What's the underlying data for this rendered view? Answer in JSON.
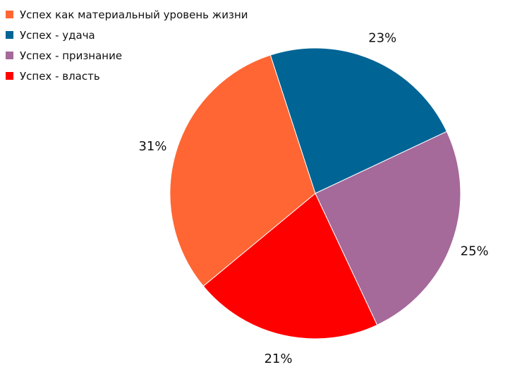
{
  "chart_data": {
    "type": "pie",
    "title": "",
    "legend_position": "top-left",
    "start_angle_deg": -18,
    "direction": "clockwise",
    "slices": [
      {
        "label": "Успех - удача",
        "value": 23,
        "display": "23%",
        "color": "#006495"
      },
      {
        "label": "Успех - признание",
        "value": 25,
        "display": "25%",
        "color": "#A5699A"
      },
      {
        "label": "Успех - власть",
        "value": 21,
        "display": "21%",
        "color": "#FF0000"
      },
      {
        "label": "Успех как материальный уровень жизни",
        "value": 31,
        "display": "31%",
        "color": "#FF6633"
      }
    ],
    "legend": [
      {
        "label": "Успех как материальный уровень жизни",
        "color": "#FF6633"
      },
      {
        "label": "Успех - удача",
        "color": "#006495"
      },
      {
        "label": "Успех - признание",
        "color": "#A5699A"
      },
      {
        "label": "Успех - власть",
        "color": "#FF0000"
      }
    ]
  }
}
